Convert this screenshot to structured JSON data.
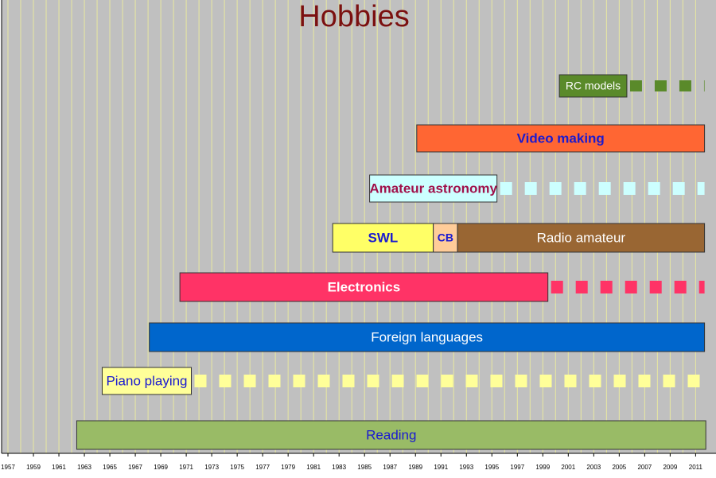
{
  "chart_data": {
    "type": "timeline",
    "title": "Hobbies",
    "title_color": "#7b1010",
    "background": "#c0c0c0",
    "grid": true,
    "grid_color": "#e8e8a0",
    "xlim": [
      1956.5,
      2012.6
    ],
    "xticks": [
      1957,
      1959,
      1961,
      1963,
      1965,
      1967,
      1969,
      1971,
      1973,
      1975,
      1977,
      1979,
      1981,
      1983,
      1985,
      1987,
      1989,
      1991,
      1993,
      1995,
      1997,
      1999,
      2001,
      2003,
      2005,
      2007,
      2009,
      2011
    ],
    "rows": [
      {
        "segments": [
          {
            "name": "RC models",
            "start": 2000.3,
            "end": 2005.6,
            "color": "#5a8a2a",
            "text_color": "#ffffff",
            "bold": false
          }
        ],
        "continued_to": 2011.7,
        "continue_color": "#5a8a2a"
      },
      {
        "segments": [
          {
            "name": "Video making",
            "start": 1989.1,
            "end": 2011.7,
            "color": "#ff6633",
            "text_color": "#1a1ad0",
            "bold": true
          }
        ]
      },
      {
        "segments": [
          {
            "name": "Amateur astronomy",
            "start": 1985.4,
            "end": 1995.4,
            "color": "#ccffff",
            "text_color": "#a0104a",
            "bold": true
          }
        ],
        "continued_to": 2011.7,
        "continue_color": "#ccffff"
      },
      {
        "segments": [
          {
            "name": "SWL",
            "start": 1982.5,
            "end": 1990.4,
            "color": "#ffff66",
            "text_color": "#1a1ad0",
            "bold": true
          },
          {
            "name": "CB",
            "start": 1990.4,
            "end": 1992.3,
            "color": "#ffcc99",
            "text_color": "#1a1ad0",
            "bold": true
          },
          {
            "name": "Radio amateur",
            "start": 1992.3,
            "end": 2011.7,
            "color": "#996633",
            "text_color": "#ffffff",
            "bold": false
          }
        ]
      },
      {
        "segments": [
          {
            "name": "Electronics",
            "start": 1970.5,
            "end": 1999.4,
            "color": "#ff3366",
            "text_color": "#ffffff",
            "bold": true
          }
        ],
        "continued_to": 2011.7,
        "continue_color": "#ff3366"
      },
      {
        "segments": [
          {
            "name": "Foreign languages",
            "start": 1968.1,
            "end": 2011.7,
            "color": "#0066cc",
            "text_color": "#ffffff",
            "bold": false
          }
        ]
      },
      {
        "segments": [
          {
            "name": "Piano playing",
            "start": 1964.4,
            "end": 1971.4,
            "color": "#ffff99",
            "text_color": "#1a1ad0",
            "bold": false
          }
        ],
        "continued_to": 2011.7,
        "continue_color": "#ffff99"
      },
      {
        "segments": [
          {
            "name": "Reading",
            "start": 1962.4,
            "end": 2011.8,
            "color": "#99bb66",
            "text_color": "#1a1ad0",
            "bold": false
          }
        ]
      }
    ]
  }
}
